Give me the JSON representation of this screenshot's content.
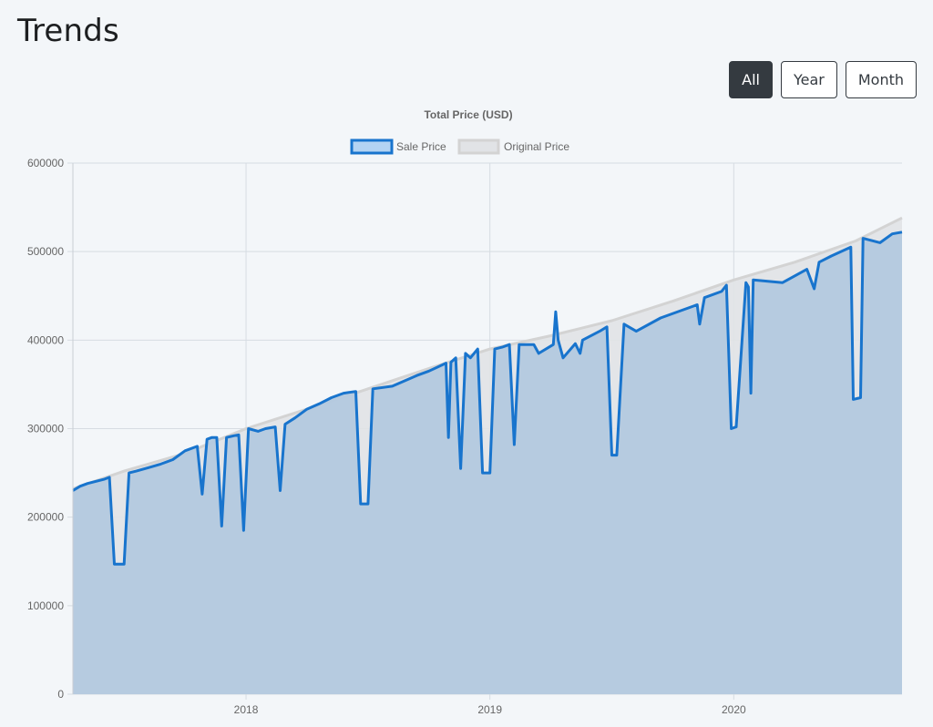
{
  "header": {
    "title": "Trends"
  },
  "range_buttons": [
    {
      "label": "All",
      "active": true
    },
    {
      "label": "Year",
      "active": false
    },
    {
      "label": "Month",
      "active": false
    }
  ],
  "chart_data": {
    "type": "area",
    "title": "Total Price (USD)",
    "legend_position": "top-center",
    "grid": true,
    "x_range": [
      2017.29,
      2020.69
    ],
    "ylim": [
      0,
      600000
    ],
    "y_ticks": [
      0,
      100000,
      200000,
      300000,
      400000,
      500000,
      600000
    ],
    "x_ticks": [
      2018,
      2019,
      2020
    ],
    "colors": {
      "sale_line": "#1874cd",
      "sale_fill": "#b3c9df",
      "original_line": "#d3d3d3",
      "original_fill": "#e1e3e6",
      "grid": "#d6dce2"
    },
    "series": [
      {
        "name": "Original Price",
        "x": [
          2017.29,
          2017.5,
          2017.75,
          2018.0,
          2018.25,
          2018.5,
          2018.75,
          2019.0,
          2019.25,
          2019.5,
          2019.75,
          2020.0,
          2020.25,
          2020.5,
          2020.69
        ],
        "values": [
          232000,
          252000,
          272000,
          300000,
          322000,
          345000,
          368000,
          390000,
          405000,
          422000,
          444000,
          468000,
          488000,
          512000,
          538000
        ]
      },
      {
        "name": "Sale Price",
        "x": [
          2017.29,
          2017.32,
          2017.35,
          2017.42,
          2017.44,
          2017.46,
          2017.5,
          2017.52,
          2017.55,
          2017.6,
          2017.65,
          2017.7,
          2017.75,
          2017.8,
          2017.82,
          2017.84,
          2017.86,
          2017.88,
          2017.9,
          2017.92,
          2017.95,
          2017.97,
          2017.99,
          2018.01,
          2018.05,
          2018.08,
          2018.12,
          2018.14,
          2018.16,
          2018.2,
          2018.25,
          2018.3,
          2018.35,
          2018.4,
          2018.45,
          2018.47,
          2018.5,
          2018.52,
          2018.6,
          2018.7,
          2018.75,
          2018.82,
          2018.83,
          2018.84,
          2018.86,
          2018.88,
          2018.9,
          2018.92,
          2018.95,
          2018.97,
          2019.0,
          2019.02,
          2019.05,
          2019.08,
          2019.1,
          2019.12,
          2019.18,
          2019.2,
          2019.26,
          2019.27,
          2019.28,
          2019.3,
          2019.35,
          2019.37,
          2019.38,
          2019.45,
          2019.48,
          2019.5,
          2019.52,
          2019.55,
          2019.6,
          2019.7,
          2019.85,
          2019.86,
          2019.88,
          2019.95,
          2019.97,
          2019.99,
          2020.01,
          2020.05,
          2020.06,
          2020.07,
          2020.08,
          2020.2,
          2020.3,
          2020.33,
          2020.35,
          2020.4,
          2020.48,
          2020.49,
          2020.52,
          2020.53,
          2020.6,
          2020.65,
          2020.69
        ],
        "values": [
          230000,
          235000,
          238000,
          243000,
          245000,
          147000,
          147000,
          250000,
          252000,
          256000,
          260000,
          265000,
          275000,
          280000,
          226000,
          288000,
          290000,
          290000,
          190000,
          290000,
          292000,
          293000,
          185000,
          300000,
          297000,
          300000,
          302000,
          230000,
          305000,
          312000,
          322000,
          328000,
          335000,
          340000,
          342000,
          215000,
          215000,
          345000,
          348000,
          360000,
          365000,
          374000,
          290000,
          375000,
          380000,
          255000,
          385000,
          380000,
          390000,
          250000,
          250000,
          390000,
          392000,
          395000,
          282000,
          395000,
          395000,
          385000,
          395000,
          432000,
          400000,
          380000,
          396000,
          385000,
          400000,
          410000,
          415000,
          270000,
          270000,
          418000,
          410000,
          425000,
          440000,
          418000,
          448000,
          455000,
          462000,
          300000,
          302000,
          465000,
          460000,
          340000,
          468000,
          465000,
          480000,
          458000,
          488000,
          495000,
          505000,
          333000,
          335000,
          515000,
          510000,
          520000,
          522000
        ]
      }
    ]
  }
}
